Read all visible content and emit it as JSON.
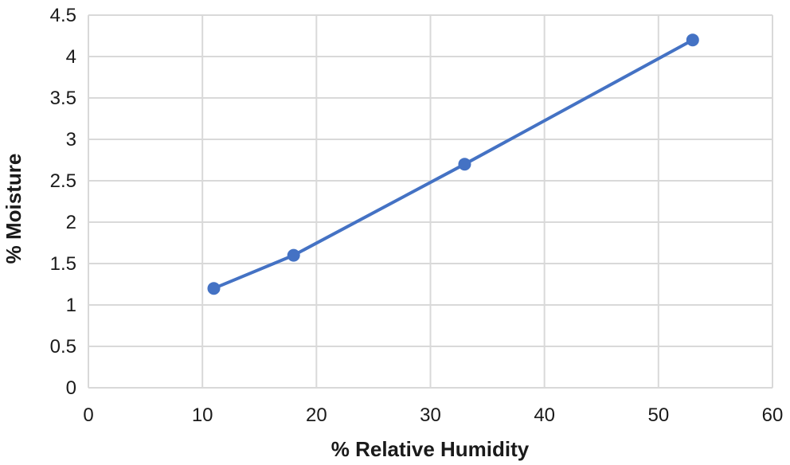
{
  "chart_data": {
    "type": "line",
    "title": "",
    "xlabel": "% Relative Humidity",
    "ylabel": "% Moisture",
    "xlim": [
      0,
      60
    ],
    "ylim": [
      0,
      4.5
    ],
    "x_ticks": [
      "0",
      "10",
      "20",
      "30",
      "40",
      "50",
      "60"
    ],
    "y_ticks": [
      "0",
      "0.5",
      "1",
      "1.5",
      "2",
      "2.5",
      "3",
      "3.5",
      "4",
      "4.5"
    ],
    "grid": true,
    "legend": "none",
    "series": [
      {
        "color": "#4472c4",
        "x": [
          11,
          18,
          33,
          53
        ],
        "y": [
          1.2,
          1.6,
          2.7,
          4.2
        ]
      }
    ]
  }
}
